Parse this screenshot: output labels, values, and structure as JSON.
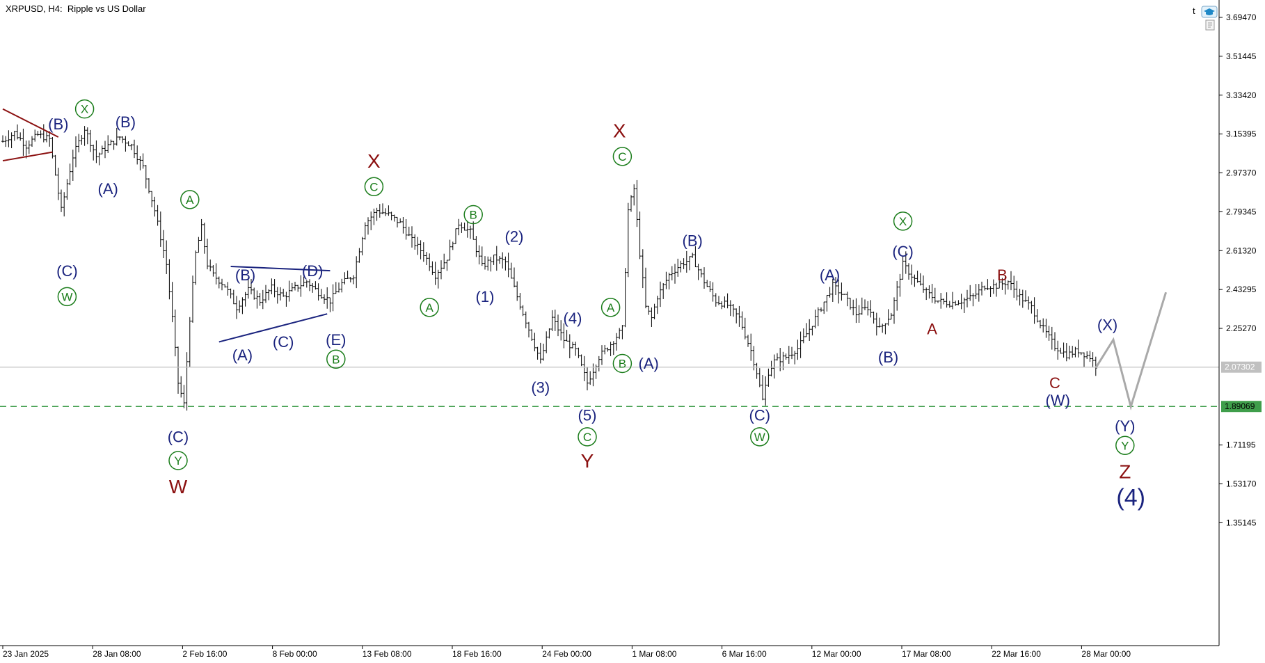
{
  "header": {
    "title": "XRPUSD, H4:  Ripple vs US Dollar",
    "corner_letter": "t"
  },
  "colors": {
    "background": "#ffffff",
    "bars": "#000000",
    "navy": "#1a237e",
    "green": "#1b7d1b",
    "maroon": "#8b1010",
    "projection": "#a9a9a9",
    "support_line": "#3f9e4b",
    "price_line": "#c0c0c0"
  },
  "chart_data": {
    "type": "ohlc",
    "symbol": "XRPUSD",
    "timeframe": "H4",
    "title": "Ripple vs US Dollar",
    "y_axis": {
      "range": [
        1.2,
        3.8
      ],
      "ticks": [
        "3.69470",
        "3.51445",
        "3.33420",
        "3.15395",
        "2.97370",
        "2.79345",
        "2.61320",
        "2.43295",
        "2.25270",
        "2.07302",
        "1.89069",
        "1.71195",
        "1.53170",
        "1.35145"
      ],
      "current_price_label": "2.07302",
      "support_label": "1.89069"
    },
    "x_axis": {
      "ticks": [
        "23 Jan 2025",
        "28 Jan 08:00",
        "2 Feb 16:00",
        "8 Feb 00:00",
        "13 Feb 08:00",
        "18 Feb 16:00",
        "24 Feb 00:00",
        "1 Mar 08:00",
        "6 Mar 16:00",
        "12 Mar 00:00",
        "17 Mar 08:00",
        "22 Mar 16:00",
        "28 Mar 00:00"
      ]
    },
    "current_price": 2.07302,
    "support_level": 1.89069,
    "price_path": [
      [
        0,
        3.12
      ],
      [
        4,
        3.16
      ],
      [
        8,
        3.1
      ],
      [
        12,
        3.15
      ],
      [
        16,
        3.13
      ],
      [
        20,
        2.8
      ],
      [
        24,
        3.05
      ],
      [
        28,
        3.18
      ],
      [
        32,
        3.05
      ],
      [
        36,
        3.1
      ],
      [
        40,
        3.14
      ],
      [
        44,
        3.1
      ],
      [
        48,
        3.0
      ],
      [
        52,
        2.8
      ],
      [
        56,
        2.55
      ],
      [
        58,
        2.3
      ],
      [
        60,
        2.0
      ],
      [
        62,
        1.9
      ],
      [
        64,
        2.3
      ],
      [
        66,
        2.6
      ],
      [
        68,
        2.72
      ],
      [
        70,
        2.55
      ],
      [
        72,
        2.5
      ],
      [
        76,
        2.45
      ],
      [
        80,
        2.35
      ],
      [
        84,
        2.43
      ],
      [
        88,
        2.38
      ],
      [
        92,
        2.44
      ],
      [
        96,
        2.4
      ],
      [
        100,
        2.44
      ],
      [
        104,
        2.47
      ],
      [
        108,
        2.42
      ],
      [
        112,
        2.38
      ],
      [
        116,
        2.46
      ],
      [
        120,
        2.5
      ],
      [
        124,
        2.74
      ],
      [
        128,
        2.8
      ],
      [
        132,
        2.78
      ],
      [
        136,
        2.74
      ],
      [
        140,
        2.66
      ],
      [
        144,
        2.6
      ],
      [
        148,
        2.5
      ],
      [
        152,
        2.58
      ],
      [
        156,
        2.74
      ],
      [
        160,
        2.7
      ],
      [
        164,
        2.54
      ],
      [
        168,
        2.58
      ],
      [
        172,
        2.56
      ],
      [
        176,
        2.4
      ],
      [
        180,
        2.25
      ],
      [
        184,
        2.1
      ],
      [
        188,
        2.3
      ],
      [
        192,
        2.2
      ],
      [
        196,
        2.15
      ],
      [
        200,
        2.0
      ],
      [
        204,
        2.12
      ],
      [
        208,
        2.18
      ],
      [
        212,
        2.25
      ],
      [
        214,
        2.8
      ],
      [
        216,
        2.9
      ],
      [
        218,
        2.6
      ],
      [
        220,
        2.35
      ],
      [
        222,
        2.3
      ],
      [
        224,
        2.4
      ],
      [
        228,
        2.5
      ],
      [
        232,
        2.55
      ],
      [
        236,
        2.58
      ],
      [
        240,
        2.47
      ],
      [
        244,
        2.38
      ],
      [
        248,
        2.36
      ],
      [
        252,
        2.3
      ],
      [
        256,
        2.15
      ],
      [
        258,
        2.05
      ],
      [
        260,
        1.92
      ],
      [
        262,
        2.05
      ],
      [
        264,
        2.1
      ],
      [
        268,
        2.12
      ],
      [
        272,
        2.16
      ],
      [
        276,
        2.25
      ],
      [
        280,
        2.35
      ],
      [
        284,
        2.45
      ],
      [
        288,
        2.4
      ],
      [
        292,
        2.32
      ],
      [
        296,
        2.35
      ],
      [
        300,
        2.25
      ],
      [
        304,
        2.32
      ],
      [
        308,
        2.55
      ],
      [
        312,
        2.48
      ],
      [
        316,
        2.42
      ],
      [
        320,
        2.38
      ],
      [
        324,
        2.37
      ],
      [
        328,
        2.38
      ],
      [
        332,
        2.4
      ],
      [
        336,
        2.45
      ],
      [
        340,
        2.45
      ],
      [
        344,
        2.47
      ],
      [
        348,
        2.4
      ],
      [
        352,
        2.35
      ],
      [
        356,
        2.25
      ],
      [
        360,
        2.17
      ],
      [
        364,
        2.13
      ],
      [
        368,
        2.15
      ],
      [
        372,
        2.12
      ],
      [
        374,
        2.08
      ]
    ],
    "projection_path": [
      [
        374,
        2.07
      ],
      [
        380,
        2.2
      ],
      [
        386,
        1.89
      ],
      [
        398,
        2.42
      ]
    ],
    "wave_labels": [
      {
        "text": "(B)",
        "x": 19,
        "y": 3.2,
        "color": "navy",
        "size": "m"
      },
      {
        "text": "X",
        "x": 28,
        "y": 3.27,
        "color": "green",
        "circled": true,
        "size": "m"
      },
      {
        "text": "(B)",
        "x": 42,
        "y": 3.21,
        "color": "navy",
        "size": "m"
      },
      {
        "text": "(A)",
        "x": 36,
        "y": 2.9,
        "color": "navy",
        "size": "m"
      },
      {
        "text": "(C)",
        "x": 22,
        "y": 2.52,
        "color": "navy",
        "size": "m"
      },
      {
        "text": "W",
        "x": 22,
        "y": 2.4,
        "color": "green",
        "circled": true,
        "size": "m"
      },
      {
        "text": "A",
        "x": 64,
        "y": 2.85,
        "color": "green",
        "circled": true,
        "size": "m"
      },
      {
        "text": "(B)",
        "x": 83,
        "y": 2.5,
        "color": "navy",
        "size": "m"
      },
      {
        "text": "(D)",
        "x": 106,
        "y": 2.52,
        "color": "navy",
        "size": "m"
      },
      {
        "text": "(A)",
        "x": 82,
        "y": 2.13,
        "color": "navy",
        "size": "m"
      },
      {
        "text": "(C)",
        "x": 96,
        "y": 2.19,
        "color": "navy",
        "size": "m"
      },
      {
        "text": "(E)",
        "x": 114,
        "y": 2.2,
        "color": "navy",
        "size": "m"
      },
      {
        "text": "B",
        "x": 114,
        "y": 2.11,
        "color": "green",
        "circled": true,
        "size": "m"
      },
      {
        "text": "(C)",
        "x": 60,
        "y": 1.75,
        "color": "navy",
        "size": "m"
      },
      {
        "text": "Y",
        "x": 60,
        "y": 1.64,
        "color": "green",
        "circled": true,
        "size": "m"
      },
      {
        "text": "W",
        "x": 60,
        "y": 1.52,
        "color": "maroon",
        "size": "l"
      },
      {
        "text": "X",
        "x": 127,
        "y": 3.03,
        "color": "maroon",
        "size": "l"
      },
      {
        "text": "C",
        "x": 127,
        "y": 2.91,
        "color": "green",
        "circled": true,
        "size": "m"
      },
      {
        "text": "B",
        "x": 161,
        "y": 2.78,
        "color": "green",
        "circled": true,
        "size": "m"
      },
      {
        "text": "A",
        "x": 146,
        "y": 2.35,
        "color": "green",
        "circled": true,
        "size": "m"
      },
      {
        "text": "(2)",
        "x": 175,
        "y": 2.68,
        "color": "navy",
        "size": "m"
      },
      {
        "text": "(1)",
        "x": 165,
        "y": 2.4,
        "color": "navy",
        "size": "m"
      },
      {
        "text": "(4)",
        "x": 195,
        "y": 2.3,
        "color": "navy",
        "size": "m"
      },
      {
        "text": "(3)",
        "x": 184,
        "y": 1.98,
        "color": "navy",
        "size": "m"
      },
      {
        "text": "(5)",
        "x": 200,
        "y": 1.85,
        "color": "navy",
        "size": "m"
      },
      {
        "text": "C",
        "x": 200,
        "y": 1.75,
        "color": "green",
        "circled": true,
        "size": "m"
      },
      {
        "text": "Y",
        "x": 200,
        "y": 1.64,
        "color": "maroon",
        "size": "l"
      },
      {
        "text": "X",
        "x": 211,
        "y": 3.17,
        "color": "maroon",
        "size": "l"
      },
      {
        "text": "C",
        "x": 212,
        "y": 3.05,
        "color": "green",
        "circled": true,
        "size": "m"
      },
      {
        "text": "A",
        "x": 208,
        "y": 2.35,
        "color": "green",
        "circled": true,
        "size": "m"
      },
      {
        "text": "B",
        "x": 212,
        "y": 2.09,
        "color": "green",
        "circled": true,
        "size": "m"
      },
      {
        "text": "(A)",
        "x": 221,
        "y": 2.09,
        "color": "navy",
        "size": "m"
      },
      {
        "text": "(B)",
        "x": 236,
        "y": 2.66,
        "color": "navy",
        "size": "m"
      },
      {
        "text": "(C)",
        "x": 259,
        "y": 1.85,
        "color": "navy",
        "size": "m"
      },
      {
        "text": "W",
        "x": 259,
        "y": 1.75,
        "color": "green",
        "circled": true,
        "size": "m"
      },
      {
        "text": "(A)",
        "x": 283,
        "y": 2.5,
        "color": "navy",
        "size": "m"
      },
      {
        "text": "X",
        "x": 308,
        "y": 2.75,
        "color": "green",
        "circled": true,
        "size": "m"
      },
      {
        "text": "(C)",
        "x": 308,
        "y": 2.61,
        "color": "navy",
        "size": "m"
      },
      {
        "text": "(B)",
        "x": 303,
        "y": 2.12,
        "color": "navy",
        "size": "m"
      },
      {
        "text": "A",
        "x": 318,
        "y": 2.25,
        "color": "maroon",
        "size": "m"
      },
      {
        "text": "B",
        "x": 342,
        "y": 2.5,
        "color": "maroon",
        "size": "m"
      },
      {
        "text": "C",
        "x": 360,
        "y": 2.0,
        "color": "maroon",
        "size": "m"
      },
      {
        "text": "(W)",
        "x": 361,
        "y": 1.92,
        "color": "navy",
        "size": "m"
      },
      {
        "text": "(X)",
        "x": 378,
        "y": 2.27,
        "color": "navy",
        "size": "m"
      },
      {
        "text": "(Y)",
        "x": 384,
        "y": 1.8,
        "color": "navy",
        "size": "m"
      },
      {
        "text": "Y",
        "x": 384,
        "y": 1.71,
        "color": "green",
        "circled": true,
        "size": "m"
      },
      {
        "text": "Z",
        "x": 384,
        "y": 1.59,
        "color": "maroon",
        "size": "l"
      },
      {
        "text": "(4)",
        "x": 386,
        "y": 1.47,
        "color": "navy",
        "size": "xl"
      }
    ],
    "triangles": [
      {
        "color": "maroon",
        "upper": [
          [
            0,
            3.27
          ],
          [
            19,
            3.14
          ]
        ],
        "lower": [
          [
            0,
            3.03
          ],
          [
            17,
            3.07
          ]
        ]
      },
      {
        "color": "navy",
        "upper": [
          [
            78,
            2.54
          ],
          [
            112,
            2.52
          ]
        ],
        "lower": [
          [
            74,
            2.19
          ],
          [
            111,
            2.32
          ]
        ]
      }
    ],
    "grid": false
  }
}
